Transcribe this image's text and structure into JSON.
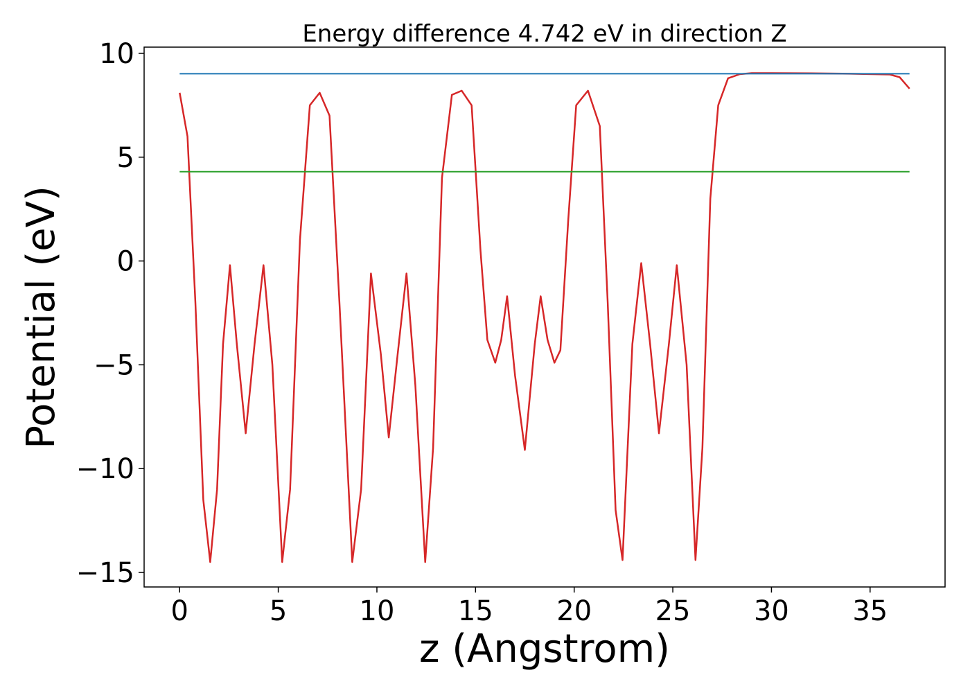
{
  "chart_data": {
    "type": "line",
    "title": "Energy difference 4.742 eV in direction Z",
    "xlabel": "z (Angstrom)",
    "ylabel": "Potential (eV)",
    "xlim": [
      -1.8,
      38.8
    ],
    "ylim": [
      -15.7,
      10.3
    ],
    "xticks": [
      0,
      5,
      10,
      15,
      20,
      25,
      30,
      35
    ],
    "yticks": [
      10,
      5,
      0,
      -5,
      -10,
      -15
    ],
    "xtick_labels": [
      "0",
      "5",
      "10",
      "15",
      "20",
      "25",
      "30",
      "35"
    ],
    "ytick_labels": [
      "10",
      "5",
      "0",
      "−5",
      "−10",
      "−15"
    ],
    "grid": false,
    "series": [
      {
        "color": "#d62728",
        "x": [
          0.0,
          0.4,
          0.8,
          1.2,
          1.55,
          1.9,
          2.2,
          2.55,
          2.9,
          3.35,
          3.8,
          4.25,
          4.7,
          5.2,
          5.6,
          6.1,
          6.6,
          7.1,
          7.6,
          8.1,
          8.75,
          9.2,
          9.7,
          10.2,
          10.6,
          11.05,
          11.5,
          11.95,
          12.45,
          12.85,
          13.3,
          13.8,
          14.3,
          14.8,
          15.25,
          15.6,
          16.0,
          16.3,
          16.6,
          17.0,
          17.5,
          18.0,
          18.3,
          18.65,
          19.0,
          19.3,
          19.7,
          20.1,
          20.7,
          21.3,
          21.7,
          22.1,
          22.45,
          22.95,
          23.4,
          23.85,
          24.3,
          24.8,
          25.2,
          25.7,
          26.15,
          26.5,
          26.9,
          27.3,
          27.8,
          28.4,
          29.0,
          30.0,
          32.0,
          34.0,
          36.0,
          36.5,
          37.0
        ],
        "y": [
          8.1,
          6.0,
          -2.0,
          -11.5,
          -14.5,
          -11.0,
          -4.0,
          -0.2,
          -4.0,
          -8.3,
          -4.0,
          -0.2,
          -5.0,
          -14.5,
          -11.0,
          1.0,
          7.5,
          8.1,
          7.0,
          -2.0,
          -14.5,
          -11.0,
          -0.6,
          -4.5,
          -8.5,
          -4.5,
          -0.6,
          -6.0,
          -14.5,
          -9.0,
          4.0,
          8.0,
          8.2,
          7.5,
          0.5,
          -3.8,
          -4.9,
          -3.8,
          -1.7,
          -5.5,
          -9.1,
          -4.0,
          -1.7,
          -3.8,
          -4.9,
          -4.3,
          2.0,
          7.5,
          8.2,
          6.5,
          -2.0,
          -12.0,
          -14.4,
          -4.0,
          -0.1,
          -4.0,
          -8.3,
          -4.0,
          -0.2,
          -5.0,
          -14.4,
          -9.0,
          3.0,
          7.5,
          8.8,
          9.0,
          9.05,
          9.05,
          9.04,
          9.02,
          8.98,
          8.85,
          8.3
        ]
      },
      {
        "color": "#1f77b4",
        "x": [
          0,
          37
        ],
        "y": [
          9.02,
          9.02
        ]
      },
      {
        "color": "#2ca02c",
        "x": [
          0,
          37
        ],
        "y": [
          4.3,
          4.3
        ]
      }
    ]
  }
}
